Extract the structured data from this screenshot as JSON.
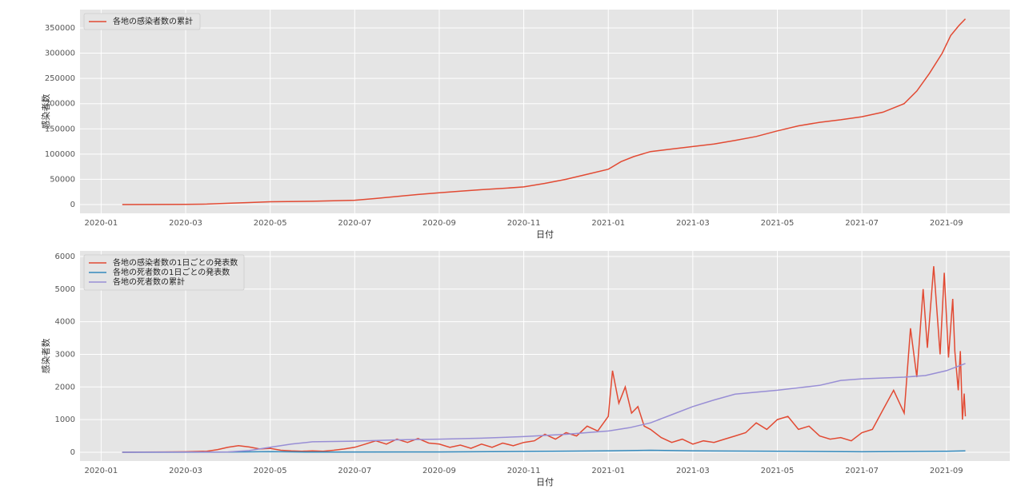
{
  "chart_data": [
    {
      "type": "line",
      "xlabel": "日付",
      "ylabel": "感染者数",
      "grid": true,
      "legend": "upper left",
      "xlim": [
        -0.5,
        21.5
      ],
      "ylim": [
        -17400,
        386400
      ],
      "xticks": [
        {
          "value": 0,
          "label": "2020-01"
        },
        {
          "value": 2,
          "label": "2020-03"
        },
        {
          "value": 4,
          "label": "2020-05"
        },
        {
          "value": 6,
          "label": "2020-07"
        },
        {
          "value": 8,
          "label": "2020-09"
        },
        {
          "value": 10,
          "label": "2020-11"
        },
        {
          "value": 12,
          "label": "2021-01"
        },
        {
          "value": 14,
          "label": "2021-03"
        },
        {
          "value": 16,
          "label": "2021-05"
        },
        {
          "value": 18,
          "label": "2021-07"
        },
        {
          "value": 20,
          "label": "2021-09"
        }
      ],
      "yticks": [
        0,
        50000,
        100000,
        150000,
        200000,
        250000,
        300000,
        350000
      ],
      "series": [
        {
          "name": "各地の感染者数の累計",
          "color": "#E24A33",
          "x": [
            0.5,
            2,
            2.5,
            3,
            3.5,
            4,
            5,
            6,
            6.5,
            7,
            7.5,
            8,
            8.5,
            9,
            9.5,
            10,
            10.5,
            11,
            11.5,
            12,
            12.3,
            12.6,
            13,
            13.5,
            14,
            14.5,
            15,
            15.5,
            16,
            16.5,
            17,
            17.5,
            18,
            18.5,
            19,
            19.3,
            19.6,
            19.9,
            20.1,
            20.3,
            20.45
          ],
          "values": [
            0,
            300,
            1000,
            2500,
            4000,
            5500,
            6500,
            8500,
            12000,
            16000,
            20000,
            23500,
            26500,
            29500,
            32000,
            35000,
            42000,
            50000,
            60000,
            70000,
            85000,
            95000,
            105000,
            110000,
            115000,
            120000,
            127000,
            135000,
            146000,
            156000,
            163000,
            168000,
            174000,
            183000,
            200000,
            225000,
            260000,
            300000,
            335000,
            355000,
            368000
          ]
        }
      ]
    },
    {
      "type": "line",
      "xlabel": "日付",
      "ylabel": "感染者数",
      "grid": true,
      "legend": "upper left",
      "xlim": [
        -0.5,
        21.5
      ],
      "ylim": [
        -270,
        6170
      ],
      "xticks": [
        {
          "value": 0,
          "label": "2020-01"
        },
        {
          "value": 2,
          "label": "2020-03"
        },
        {
          "value": 4,
          "label": "2020-05"
        },
        {
          "value": 6,
          "label": "2020-07"
        },
        {
          "value": 8,
          "label": "2020-09"
        },
        {
          "value": 10,
          "label": "2020-11"
        },
        {
          "value": 12,
          "label": "2021-01"
        },
        {
          "value": 14,
          "label": "2021-03"
        },
        {
          "value": 16,
          "label": "2021-05"
        },
        {
          "value": 18,
          "label": "2021-07"
        },
        {
          "value": 20,
          "label": "2021-09"
        }
      ],
      "yticks": [
        0,
        1000,
        2000,
        3000,
        4000,
        5000,
        6000
      ],
      "series": [
        {
          "name": "各地の感染者数の1日ごとの発表数",
          "color": "#E24A33",
          "x": [
            0.5,
            1,
            1.5,
            2,
            2.5,
            2.75,
            3,
            3.25,
            3.5,
            3.75,
            4,
            4.25,
            4.5,
            4.75,
            5,
            5.25,
            5.5,
            5.75,
            6,
            6.25,
            6.5,
            6.75,
            7,
            7.25,
            7.5,
            7.75,
            8,
            8.25,
            8.5,
            8.75,
            9,
            9.25,
            9.5,
            9.75,
            10,
            10.25,
            10.5,
            10.75,
            11,
            11.25,
            11.5,
            11.75,
            12,
            12.1,
            12.25,
            12.4,
            12.55,
            12.7,
            12.85,
            13,
            13.25,
            13.5,
            13.75,
            14,
            14.25,
            14.5,
            14.75,
            15,
            15.25,
            15.5,
            15.75,
            16,
            16.25,
            16.5,
            16.75,
            17,
            17.25,
            17.5,
            17.75,
            18,
            18.25,
            18.5,
            18.75,
            19,
            19.15,
            19.3,
            19.45,
            19.55,
            19.7,
            19.85,
            19.95,
            20.05,
            20.15,
            20.2,
            20.28,
            20.33,
            20.38,
            20.42,
            20.45
          ],
          "values": [
            0,
            5,
            10,
            15,
            30,
            80,
            150,
            200,
            160,
            100,
            120,
            60,
            40,
            30,
            40,
            30,
            60,
            100,
            150,
            250,
            350,
            250,
            400,
            300,
            420,
            280,
            250,
            150,
            220,
            120,
            250,
            150,
            280,
            200,
            300,
            350,
            550,
            400,
            600,
            500,
            800,
            650,
            1100,
            2500,
            1500,
            2000,
            1200,
            1400,
            800,
            700,
            450,
            300,
            400,
            250,
            350,
            300,
            400,
            500,
            600,
            900,
            700,
            1000,
            1100,
            700,
            800,
            500,
            400,
            450,
            350,
            600,
            700,
            1300,
            1900,
            1200,
            3800,
            2300,
            5000,
            3200,
            5700,
            3000,
            5500,
            2900,
            4700,
            3100,
            1900,
            3100,
            1000,
            1800,
            1100
          ]
        },
        {
          "name": "各地の死者数の1日ごとの発表数",
          "color": "#348ABD",
          "x": [
            0.5,
            3,
            4,
            5,
            8,
            12,
            13,
            14,
            16,
            18,
            20,
            20.45
          ],
          "values": [
            0,
            5,
            20,
            5,
            10,
            40,
            60,
            40,
            30,
            15,
            30,
            40
          ]
        },
        {
          "name": "各地の死者数の累計",
          "color": "#988ED5",
          "x": [
            0.5,
            3,
            3.5,
            4,
            4.5,
            5,
            6,
            7,
            8,
            9,
            10,
            11,
            12,
            12.5,
            13,
            13.5,
            14,
            14.5,
            15,
            16,
            17,
            17.5,
            18,
            19,
            19.5,
            20,
            20.45
          ],
          "values": [
            0,
            10,
            50,
            150,
            250,
            320,
            340,
            380,
            400,
            430,
            480,
            550,
            650,
            750,
            900,
            1150,
            1400,
            1600,
            1780,
            1900,
            2050,
            2200,
            2250,
            2300,
            2350,
            2500,
            2720
          ]
        }
      ]
    }
  ]
}
